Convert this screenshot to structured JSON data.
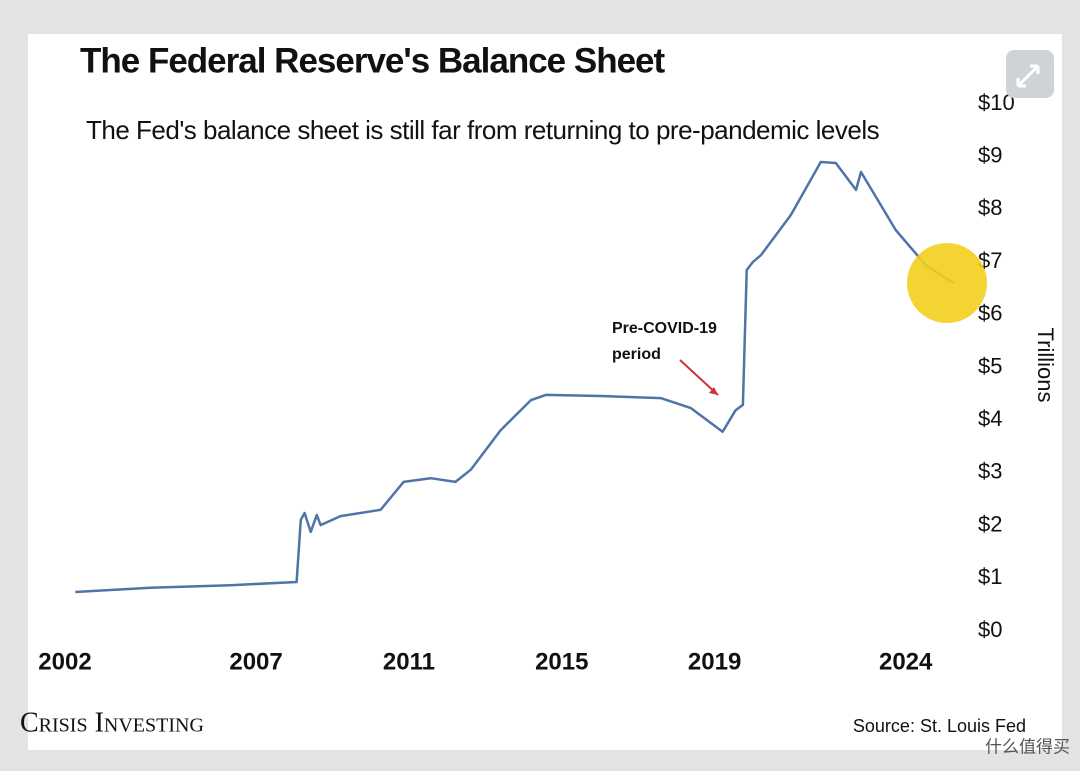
{
  "chart_data": {
    "type": "line",
    "title": "The Federal Reserve's Balance Sheet",
    "subtitle": "The Fed's balance sheet is still far from returning to pre-pandemic levels",
    "annotation": [
      "Pre-COVID-19",
      "period"
    ],
    "ylabel": "Trillions",
    "brand": "Crisis Investing",
    "source": "Source: St. Louis Fed",
    "watermark": "什么值得买",
    "color": "#4f74a8",
    "x": [
      2002.27,
      2004.23,
      2006.33,
      2008.06,
      2008.17,
      2008.27,
      2008.43,
      2008.59,
      2008.69,
      2009.21,
      2010.26,
      2010.86,
      2011.57,
      2012.22,
      2012.62,
      2013.4,
      2014.19,
      2014.58,
      2016.02,
      2017.59,
      2018.38,
      2019.21,
      2019.55,
      2019.74,
      2019.84,
      2020.0,
      2020.21,
      2020.99,
      2021.78,
      2022.17,
      2022.7,
      2022.83,
      2023.74,
      2024.53,
      2025.26
    ],
    "values": [
      0.74,
      0.82,
      0.87,
      0.93,
      2.11,
      2.24,
      1.88,
      2.2,
      2.01,
      2.18,
      2.3,
      2.83,
      2.9,
      2.83,
      3.06,
      3.81,
      4.38,
      4.48,
      4.46,
      4.42,
      4.23,
      3.78,
      4.19,
      4.29,
      6.85,
      7.0,
      7.13,
      7.89,
      8.9,
      8.88,
      8.37,
      8.71,
      7.61,
      6.94,
      6.6
    ],
    "xlim": [
      2002,
      2025.5
    ],
    "xticks": [
      2002,
      2007,
      2011,
      2015,
      2019,
      2024
    ],
    "ylim": [
      0,
      10
    ],
    "yticks": [
      {
        "value": 0,
        "label": "$0"
      },
      {
        "value": 1,
        "label": "$1"
      },
      {
        "value": 2,
        "label": "$2"
      },
      {
        "value": 3,
        "label": "$3"
      },
      {
        "value": 4,
        "label": "$4"
      },
      {
        "value": 5,
        "label": "$5"
      },
      {
        "value": 6,
        "label": "$6"
      },
      {
        "value": 7,
        "label": "$7"
      },
      {
        "value": 8,
        "label": "$8"
      },
      {
        "value": 9,
        "label": "$9"
      },
      {
        "value": 10,
        "label": "$10"
      }
    ],
    "grid": false
  }
}
